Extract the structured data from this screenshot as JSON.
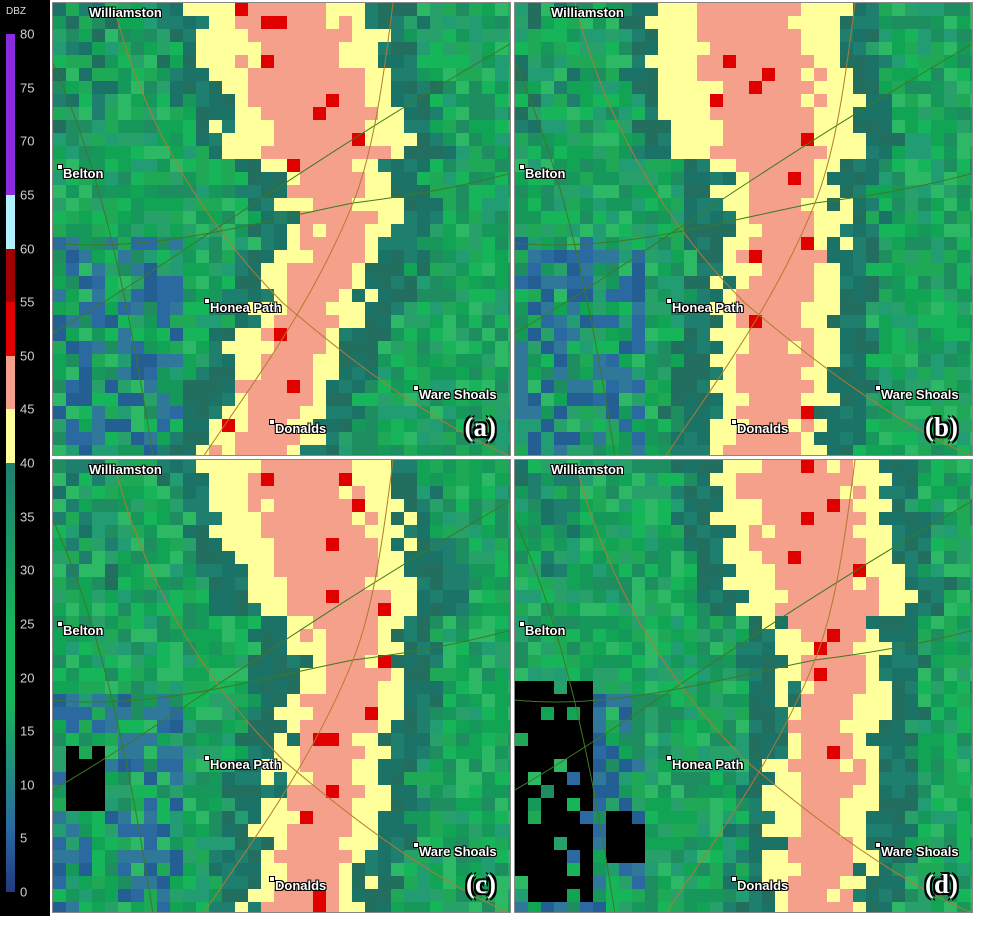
{
  "legend": {
    "unit": "DBZ",
    "ticks": [
      "80",
      "75",
      "70",
      "65",
      "60",
      "55",
      "50",
      "45",
      "40",
      "35",
      "30",
      "25",
      "20",
      "15",
      "10",
      "5",
      "0"
    ],
    "colors": {
      "purple": "#8a2be2",
      "cyan": "#b0f0ff",
      "darkred": "#a00000",
      "red": "#e00000",
      "salmon": "#f4a08a",
      "yellow": "#ffff9c",
      "teal": "#1f7f6f",
      "green": "#17b55a",
      "blue": "#2a6aa0",
      "black": "#000000"
    }
  },
  "cities": {
    "williamston": "Williamston",
    "belton": "Belton",
    "honea_path": "Honea Path",
    "ware_shoals": "Ware Shoals",
    "donalds": "Donalds"
  },
  "panels": [
    {
      "label": "(a)"
    },
    {
      "label": "(b)"
    },
    {
      "label": "(c)"
    },
    {
      "label": "(d)"
    }
  ]
}
